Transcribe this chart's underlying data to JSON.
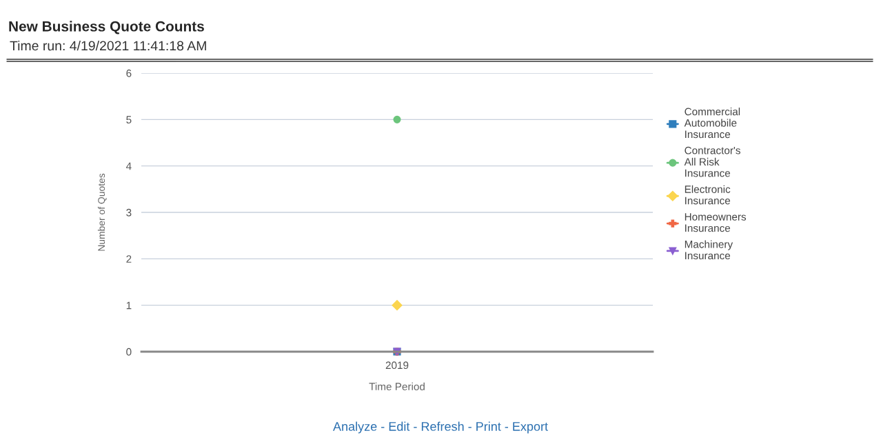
{
  "chart_data": {
    "type": "line",
    "title": "New Business Quote Counts",
    "subtitle": "Time run: 4/19/2021 11:41:18 AM",
    "xlabel": "Time Period",
    "ylabel": "Number of Quotes",
    "categories": [
      "2019"
    ],
    "series": [
      {
        "name": "Commercial Automobile Insurance",
        "color": "#2f7ebc",
        "marker": "square",
        "values": [
          0
        ]
      },
      {
        "name": "Contractor's All Risk Insurance",
        "color": "#6cc57c",
        "marker": "circle",
        "values": [
          5
        ]
      },
      {
        "name": "Electronic Insurance",
        "color": "#fbd54f",
        "marker": "diamond",
        "values": [
          1
        ]
      },
      {
        "name": "Homeowners Insurance",
        "color": "#f06744",
        "marker": "cross",
        "values": [
          0
        ]
      },
      {
        "name": "Machinery Insurance",
        "color": "#8a5fd1",
        "marker": "triangle",
        "values": [
          0
        ]
      }
    ],
    "ylim": [
      0,
      6
    ],
    "yticks": [
      0,
      1,
      2,
      3,
      4,
      5,
      6
    ],
    "grid": "y",
    "legend": "right",
    "annotations": [
      "Analyze - Edit - Refresh - Print - Export"
    ]
  }
}
